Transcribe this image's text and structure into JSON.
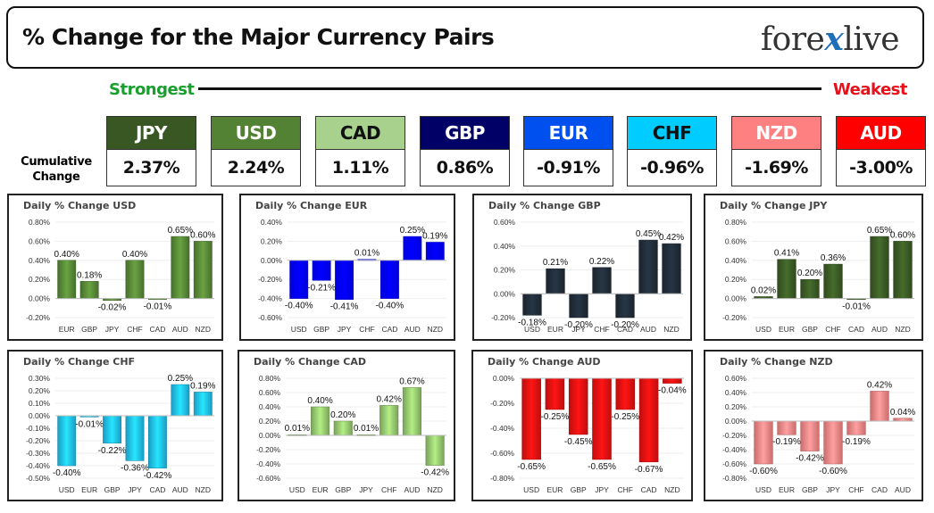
{
  "header": {
    "title": "% Change for the Major Currency Pairs",
    "logo_left": "fore",
    "logo_x": "x",
    "logo_right": "live"
  },
  "strength_bar": {
    "strongest": "Strongest",
    "weakest": "Weakest"
  },
  "cumulative": {
    "label_line1": "Cumulative",
    "label_line2": "Change",
    "items": [
      {
        "currency": "JPY",
        "value": "2.37%",
        "color": "#385723",
        "text_color": "#ffffff"
      },
      {
        "currency": "USD",
        "value": "2.24%",
        "color": "#548235",
        "text_color": "#ffffff"
      },
      {
        "currency": "CAD",
        "value": "1.11%",
        "color": "#a9d18e",
        "text_color": "#111111"
      },
      {
        "currency": "GBP",
        "value": "0.86%",
        "color": "#000066",
        "text_color": "#ffffff"
      },
      {
        "currency": "EUR",
        "value": "-0.91%",
        "color": "#0050ef",
        "text_color": "#ffffff"
      },
      {
        "currency": "CHF",
        "value": "-0.96%",
        "color": "#00ccff",
        "text_color": "#111111"
      },
      {
        "currency": "NZD",
        "value": "-1.69%",
        "color": "#ff8080",
        "text_color": "#ffffff"
      },
      {
        "currency": "AUD",
        "value": "-3.00%",
        "color": "#ff0000",
        "text_color": "#ffffff"
      }
    ]
  },
  "chart_data": [
    {
      "type": "bar",
      "title": "Daily % Change USD",
      "color": "#548235",
      "categories": [
        "EUR",
        "GBP",
        "JPY",
        "CHF",
        "CAD",
        "AUD",
        "NZD"
      ],
      "values": [
        0.4,
        0.18,
        -0.02,
        0.4,
        -0.01,
        0.65,
        0.6
      ],
      "labels": [
        "0.40%",
        "0.18%",
        "-0.02%",
        "0.40%",
        "-0.01%",
        "0.65%",
        "0.60%"
      ],
      "ylim": [
        -0.2,
        0.8
      ],
      "yticks": [
        -0.2,
        0.0,
        0.2,
        0.4,
        0.6,
        0.8
      ],
      "ytick_labels": [
        "-0.20%",
        "0.00%",
        "0.20%",
        "0.40%",
        "0.60%",
        "0.80%"
      ]
    },
    {
      "type": "bar",
      "title": "Daily % Change EUR",
      "color": "#0000ff",
      "categories": [
        "USD",
        "GBP",
        "JPY",
        "CHF",
        "CAD",
        "AUD",
        "NZD"
      ],
      "values": [
        -0.4,
        -0.21,
        -0.41,
        0.01,
        -0.4,
        0.25,
        0.19
      ],
      "labels": [
        "-0.40%",
        "-0.21%",
        "-0.41%",
        "0.01%",
        "-0.40%",
        "0.25%",
        "0.19%"
      ],
      "ylim": [
        -0.6,
        0.4
      ],
      "yticks": [
        -0.6,
        -0.4,
        -0.2,
        0.0,
        0.2,
        0.4
      ],
      "ytick_labels": [
        "-0.60%",
        "-0.40%",
        "-0.20%",
        "0.00%",
        "0.20%",
        "0.40%"
      ]
    },
    {
      "type": "bar",
      "title": "Daily % Change GBP",
      "color": "#1f2a36",
      "categories": [
        "USD",
        "EUR",
        "JPY",
        "CHF",
        "CAD",
        "AUD",
        "NZD"
      ],
      "values": [
        -0.18,
        0.21,
        -0.2,
        0.22,
        -0.2,
        0.45,
        0.42
      ],
      "labels": [
        "-0.18%",
        "0.21%",
        "-0.20%",
        "0.22%",
        "-0.20%",
        "0.45%",
        "0.42%"
      ],
      "ylim": [
        -0.2,
        0.6
      ],
      "yticks": [
        -0.2,
        0.0,
        0.2,
        0.4,
        0.6
      ],
      "ytick_labels": [
        "-0.20%",
        "0.00%",
        "0.20%",
        "0.40%",
        "0.60%"
      ]
    },
    {
      "type": "bar",
      "title": "Daily % Change JPY",
      "color": "#385723",
      "categories": [
        "USD",
        "EUR",
        "GBP",
        "CHF",
        "CAD",
        "AUD",
        "NZD"
      ],
      "values": [
        0.02,
        0.41,
        0.2,
        0.36,
        -0.01,
        0.65,
        0.6
      ],
      "labels": [
        "0.02%",
        "0.41%",
        "0.20%",
        "0.36%",
        "-0.01%",
        "0.65%",
        "0.60%"
      ],
      "ylim": [
        -0.2,
        0.8
      ],
      "yticks": [
        -0.2,
        0.0,
        0.2,
        0.4,
        0.6,
        0.8
      ],
      "ytick_labels": [
        "-0.20%",
        "0.00%",
        "0.20%",
        "0.40%",
        "0.60%",
        "0.80%"
      ]
    },
    {
      "type": "bar",
      "title": "Daily % Change CHF",
      "color": "#1fb8e6",
      "categories": [
        "USD",
        "EUR",
        "GBP",
        "JPY",
        "CAD",
        "AUD",
        "NZD"
      ],
      "values": [
        -0.4,
        -0.01,
        -0.22,
        -0.36,
        -0.42,
        0.25,
        0.19
      ],
      "labels": [
        "-0.40%",
        "-0.01%",
        "-0.22%",
        "-0.36%",
        "-0.42%",
        "0.25%",
        "0.19%"
      ],
      "ylim": [
        -0.5,
        0.3
      ],
      "yticks": [
        -0.5,
        -0.4,
        -0.3,
        -0.2,
        -0.1,
        0.0,
        0.1,
        0.2,
        0.3
      ],
      "ytick_labels": [
        "-0.50%",
        "-0.40%",
        "-0.30%",
        "-0.20%",
        "-0.10%",
        "0.00%",
        "0.10%",
        "0.20%",
        "0.30%"
      ]
    },
    {
      "type": "bar",
      "title": "Daily % Change CAD",
      "color": "#8fbf6a",
      "categories": [
        "USD",
        "EUR",
        "GBP",
        "JPY",
        "CHF",
        "AUD",
        "NZD"
      ],
      "values": [
        0.01,
        0.4,
        0.2,
        0.01,
        0.42,
        0.67,
        -0.42
      ],
      "labels": [
        "0.01%",
        "0.40%",
        "0.20%",
        "0.01%",
        "0.42%",
        "0.67%",
        "-0.42%"
      ],
      "ylim": [
        -0.6,
        0.8
      ],
      "yticks": [
        -0.6,
        -0.4,
        -0.2,
        0.0,
        0.2,
        0.4,
        0.6,
        0.8
      ],
      "ytick_labels": [
        "-0.60%",
        "-0.40%",
        "-0.20%",
        "0.00%",
        "0.20%",
        "0.40%",
        "0.60%",
        "0.80%"
      ]
    },
    {
      "type": "bar",
      "title": "Daily % Change AUD",
      "color": "#e01010",
      "categories": [
        "USD",
        "EUR",
        "GBP",
        "JPY",
        "CHF",
        "CAD",
        "NZD"
      ],
      "values": [
        -0.65,
        -0.25,
        -0.45,
        -0.65,
        -0.25,
        -0.67,
        -0.04
      ],
      "labels": [
        "-0.65%",
        "-0.25%",
        "-0.45%",
        "-0.65%",
        "-0.25%",
        "-0.67%",
        "-0.04%"
      ],
      "ylim": [
        -0.8,
        0.0
      ],
      "yticks": [
        -0.8,
        -0.6,
        -0.4,
        -0.2,
        0.0
      ],
      "ytick_labels": [
        "-0.80%",
        "-0.60%",
        "-0.40%",
        "-0.20%",
        "0.00%"
      ]
    },
    {
      "type": "bar",
      "title": "Daily % Change NZD",
      "color": "#f08080",
      "categories": [
        "USD",
        "EUR",
        "GBP",
        "JPY",
        "CHF",
        "CAD",
        "AUD"
      ],
      "values": [
        -0.6,
        -0.19,
        -0.42,
        -0.6,
        -0.19,
        0.42,
        0.04
      ],
      "labels": [
        "-0.60%",
        "-0.19%",
        "-0.42%",
        "-0.60%",
        "-0.19%",
        "0.42%",
        "0.04%"
      ],
      "ylim": [
        -0.8,
        0.6
      ],
      "yticks": [
        -0.8,
        -0.6,
        -0.4,
        -0.2,
        0.0,
        0.2,
        0.4,
        0.6
      ],
      "ytick_labels": [
        "-0.80%",
        "-0.60%",
        "-0.40%",
        "-0.20%",
        "0.00%",
        "0.20%",
        "0.40%",
        "0.60%"
      ]
    }
  ]
}
